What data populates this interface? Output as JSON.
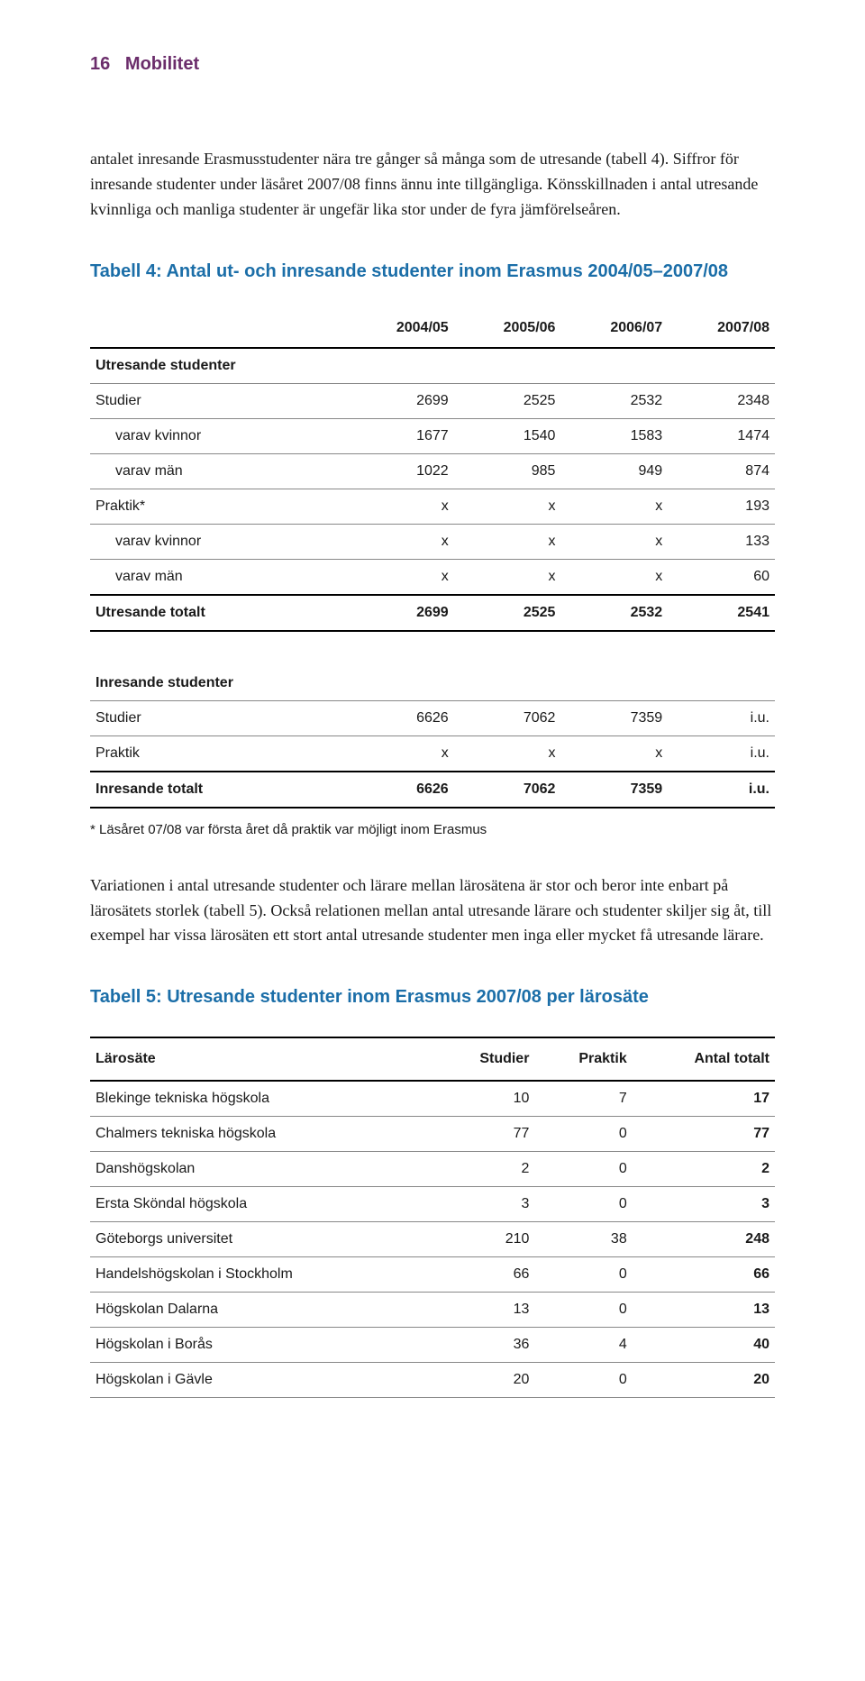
{
  "header": {
    "page_number": "16",
    "section": "Mobilitet"
  },
  "para1": "antalet inresande Erasmusstudenter nära tre gånger så många som de utresande (tabell 4). Siffror för inresande studenter under läsåret 2007/08 finns ännu inte tillgängliga. Könsskillnaden i antal utresande kvinnliga och manliga studenter är ungefär lika stor under de fyra jämförelseåren.",
  "table4": {
    "title": "Tabell 4: Antal ut- och inresande studenter inom Erasmus 2004/05–2007/08",
    "columns": [
      "",
      "2004/05",
      "2005/06",
      "2006/07",
      "2007/08"
    ],
    "section_out": "Utresande studenter",
    "rows_out": [
      {
        "label": "Studier",
        "indent": 0,
        "v": [
          "2699",
          "2525",
          "2532",
          "2348"
        ]
      },
      {
        "label": "varav kvinnor",
        "indent": 1,
        "v": [
          "1677",
          "1540",
          "1583",
          "1474"
        ]
      },
      {
        "label": "varav män",
        "indent": 1,
        "v": [
          "1022",
          "985",
          "949",
          "874"
        ]
      },
      {
        "label": "Praktik*",
        "indent": 0,
        "v": [
          "x",
          "x",
          "x",
          "193"
        ]
      },
      {
        "label": "varav kvinnor",
        "indent": 1,
        "v": [
          "x",
          "x",
          "x",
          "133"
        ]
      },
      {
        "label": "varav män",
        "indent": 1,
        "v": [
          "x",
          "x",
          "x",
          "60"
        ]
      }
    ],
    "total_out": {
      "label": "Utresande totalt",
      "v": [
        "2699",
        "2525",
        "2532",
        "2541"
      ]
    },
    "section_in": "Inresande studenter",
    "rows_in": [
      {
        "label": "Studier",
        "indent": 0,
        "v": [
          "6626",
          "7062",
          "7359",
          "i.u."
        ]
      },
      {
        "label": "Praktik",
        "indent": 0,
        "v": [
          "x",
          "x",
          "x",
          "i.u."
        ]
      }
    ],
    "total_in": {
      "label": "Inresande totalt",
      "v": [
        "6626",
        "7062",
        "7359",
        "i.u."
      ]
    },
    "footnote": "* Läsåret 07/08 var första året då praktik var möjligt inom Erasmus"
  },
  "para2": "Variationen i antal utresande studenter och lärare mellan lärosätena är stor och beror inte enbart på lärosätets storlek (tabell 5). Också relationen mellan antal utresande lärare och studenter skiljer sig åt, till exempel har vissa lärosäten ett stort antal utresande studenter men inga eller mycket få utresande lärare.",
  "table5": {
    "title": "Tabell 5: Utresande studenter inom Erasmus 2007/08 per lärosäte",
    "columns": [
      "Lärosäte",
      "Studier",
      "Praktik",
      "Antal totalt"
    ],
    "rows": [
      {
        "label": "Blekinge tekniska högskola",
        "v": [
          "10",
          "7",
          "17"
        ]
      },
      {
        "label": "Chalmers tekniska högskola",
        "v": [
          "77",
          "0",
          "77"
        ]
      },
      {
        "label": "Danshögskolan",
        "v": [
          "2",
          "0",
          "2"
        ]
      },
      {
        "label": "Ersta Sköndal högskola",
        "v": [
          "3",
          "0",
          "3"
        ]
      },
      {
        "label": "Göteborgs universitet",
        "v": [
          "210",
          "38",
          "248"
        ]
      },
      {
        "label": "Handelshögskolan i Stockholm",
        "v": [
          "66",
          "0",
          "66"
        ]
      },
      {
        "label": "Högskolan Dalarna",
        "v": [
          "13",
          "0",
          "13"
        ]
      },
      {
        "label": "Högskolan i Borås",
        "v": [
          "36",
          "4",
          "40"
        ]
      },
      {
        "label": "Högskolan i Gävle",
        "v": [
          "20",
          "0",
          "20"
        ]
      }
    ]
  },
  "colors": {
    "header_purple": "#6b2d6b",
    "title_blue": "#1b6ea8",
    "text": "#1a1a1a",
    "rule_dark": "#000000",
    "rule_light": "#888888",
    "background": "#ffffff"
  }
}
